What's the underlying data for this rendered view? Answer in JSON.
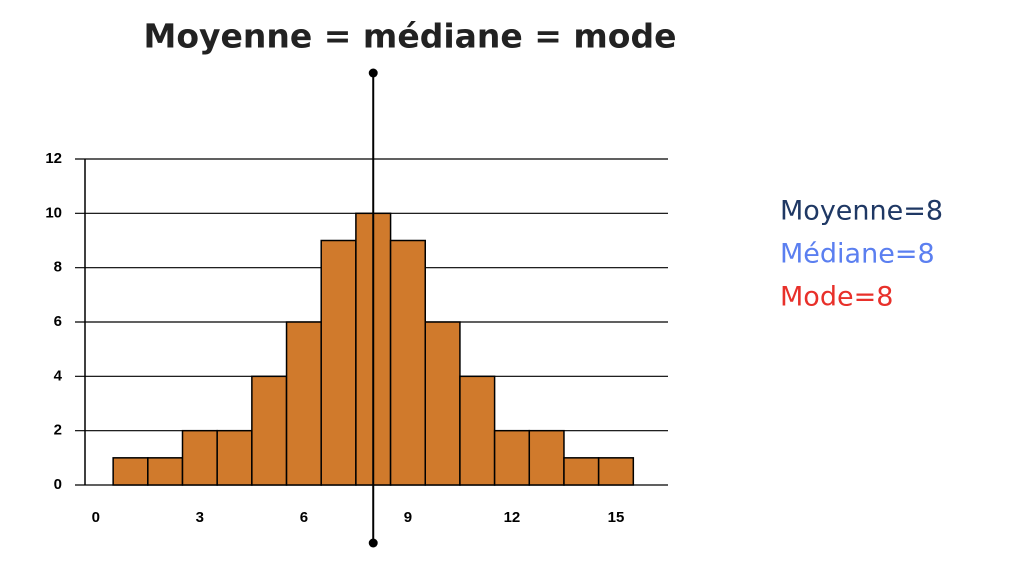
{
  "chart_data": {
    "type": "histogram",
    "title": "Moyenne = médiane = mode",
    "bins": [
      0.5,
      1.5,
      2.5,
      3.5,
      4.5,
      5.5,
      6.5,
      7.5,
      8.5,
      9.5,
      10.5,
      11.5,
      12.5,
      13.5,
      14.5,
      15.5
    ],
    "values": [
      1,
      1,
      2,
      2,
      4,
      6,
      9,
      10,
      9,
      6,
      4,
      2,
      2,
      1,
      1
    ],
    "color": "#d07a2c",
    "xlim": [
      -0.6,
      16.5
    ],
    "xticks": [
      0,
      3,
      6,
      9,
      12,
      15
    ],
    "ylim": [
      0,
      12
    ],
    "yticks": [
      0,
      2,
      4,
      6,
      8,
      10,
      12
    ],
    "grid": true,
    "mean_line": 8,
    "annotations": [
      {
        "text": "Moyenne=8",
        "color": "#1f3864"
      },
      {
        "text": "Médiane=8",
        "color": "#5b7ff0"
      },
      {
        "text": "Mode=8",
        "color": "#e8302a"
      }
    ]
  }
}
